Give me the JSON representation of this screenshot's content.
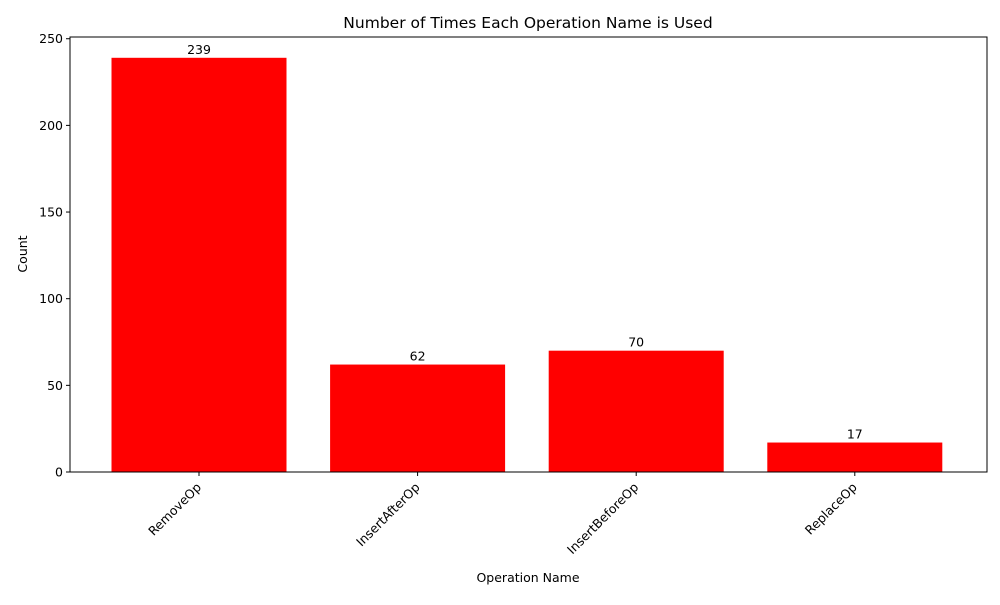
{
  "chart_data": {
    "type": "bar",
    "title": "Number of Times Each Operation Name is Used",
    "xlabel": "Operation Name",
    "ylabel": "Count",
    "categories": [
      "RemoveOp",
      "InsertAfterOp",
      "InsertBeforeOp",
      "ReplaceOp"
    ],
    "values": [
      239,
      62,
      70,
      17
    ],
    "ylim": [
      0,
      251
    ],
    "yticks": [
      0,
      50,
      100,
      150,
      200,
      250
    ],
    "bar_color": "#ff0000",
    "grid": false,
    "legend": "none"
  }
}
